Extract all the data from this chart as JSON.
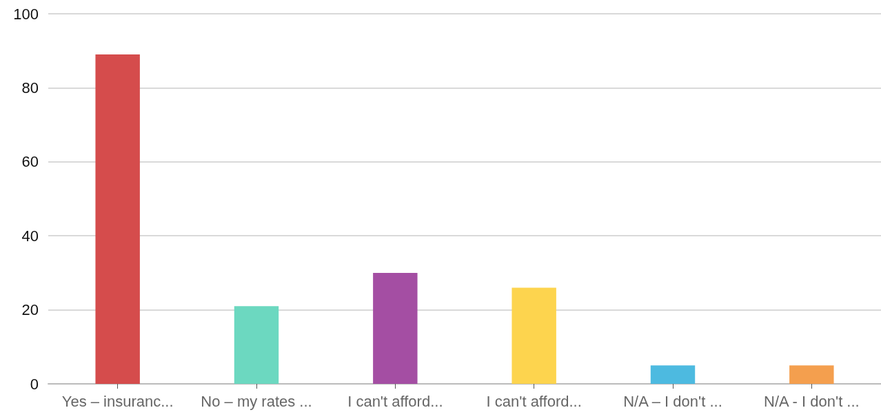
{
  "chart_data": {
    "type": "bar",
    "categories": [
      "Yes – insuranc...",
      "No – my rates ...",
      "I can't afford...",
      "I can't afford...",
      "N/A – I don't ...",
      "N/A - I don't ..."
    ],
    "values": [
      89,
      21,
      30,
      26,
      5,
      5
    ],
    "colors": [
      "#d54c4c",
      "#6cd8c0",
      "#a44ea3",
      "#fdd44e",
      "#4dbae0",
      "#f49f4e"
    ],
    "ylim": [
      0,
      100
    ],
    "yticks": [
      0,
      20,
      40,
      60,
      80,
      100
    ],
    "grid": "y"
  }
}
